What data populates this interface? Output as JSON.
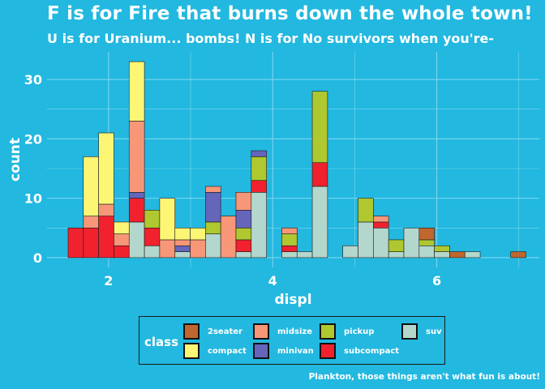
{
  "title": "F is for Fire that burns down the whole town!",
  "subtitle": "U is for Uranium... bombs! N is for No survivors when you're-",
  "caption": "Plankton, those things aren't what fun is about!",
  "colors": {
    "background": "#22b8e0",
    "grid": "#7fd6ee",
    "bar_outline": "#1a1a1a"
  },
  "legend": {
    "title": "class",
    "items": [
      {
        "name": "2seater",
        "color": "#c0672d"
      },
      {
        "name": "compact",
        "color": "#fdf574"
      },
      {
        "name": "midsize",
        "color": "#f79778"
      },
      {
        "name": "minivan",
        "color": "#6565ba"
      },
      {
        "name": "pickup",
        "color": "#afc82f"
      },
      {
        "name": "subcompact",
        "color": "#f2212e"
      },
      {
        "name": "suv",
        "color": "#b3d7cc"
      }
    ]
  },
  "chart_data": {
    "type": "bar",
    "stacked": true,
    "xlabel": "displ",
    "ylabel": "count",
    "xlim": [
      1.25,
      7.25
    ],
    "ylim": [
      -1.65,
      34.65
    ],
    "xticks": [
      "2",
      "4",
      "6"
    ],
    "xtick_values": [
      2,
      4,
      6
    ],
    "yticks": [
      "0",
      "10",
      "20",
      "30"
    ],
    "ytick_values": [
      0,
      10,
      20,
      30
    ],
    "grid": true,
    "legend_position": "bottom",
    "bin_width": 0.186,
    "bins_center": [
      1.6,
      1.786,
      1.972,
      2.158,
      2.344,
      2.53,
      2.716,
      2.902,
      3.088,
      3.274,
      3.46,
      3.646,
      3.832,
      4.018,
      4.204,
      4.39,
      4.576,
      4.762,
      4.948,
      5.134,
      5.32,
      5.506,
      5.692,
      5.878,
      6.064,
      6.25,
      6.436,
      6.622,
      6.808,
      6.994
    ],
    "series": [
      {
        "name": "2seater",
        "values": [
          0,
          0,
          0,
          0,
          0,
          0,
          0,
          0,
          0,
          0,
          0,
          0,
          0,
          0,
          0,
          0,
          0,
          0,
          0,
          0,
          0,
          0,
          0,
          2,
          0,
          1,
          0,
          0,
          0,
          1
        ]
      },
      {
        "name": "compact",
        "values": [
          0,
          10,
          12,
          2,
          10,
          0,
          7,
          2,
          2,
          0,
          0,
          0,
          0,
          0,
          0,
          0,
          0,
          0,
          0,
          0,
          0,
          0,
          0,
          0,
          0,
          0,
          0,
          0,
          0,
          0
        ]
      },
      {
        "name": "midsize",
        "values": [
          0,
          2,
          2,
          2,
          12,
          0,
          3,
          1,
          3,
          1,
          7,
          3,
          0,
          0,
          1,
          0,
          0,
          0,
          0,
          0,
          1,
          0,
          0,
          0,
          0,
          0,
          0,
          0,
          0,
          0
        ]
      },
      {
        "name": "minivan",
        "values": [
          0,
          0,
          0,
          0,
          1,
          0,
          0,
          1,
          0,
          5,
          0,
          3,
          1,
          0,
          0,
          0,
          0,
          0,
          0,
          0,
          0,
          0,
          0,
          0,
          0,
          0,
          0,
          0,
          0,
          0
        ]
      },
      {
        "name": "pickup",
        "values": [
          0,
          0,
          0,
          0,
          0,
          3,
          0,
          0,
          0,
          2,
          0,
          2,
          4,
          0,
          2,
          0,
          12,
          0,
          0,
          4,
          0,
          2,
          0,
          1,
          1,
          0,
          0,
          0,
          0,
          0
        ]
      },
      {
        "name": "subcompact",
        "values": [
          5,
          5,
          7,
          2,
          4,
          3,
          0,
          0,
          0,
          0,
          0,
          2,
          2,
          0,
          1,
          0,
          4,
          0,
          0,
          0,
          1,
          0,
          0,
          0,
          0,
          0,
          0,
          0,
          0,
          0
        ]
      },
      {
        "name": "suv",
        "values": [
          0,
          0,
          0,
          0,
          6,
          2,
          0,
          1,
          0,
          4,
          0,
          1,
          11,
          0,
          1,
          1,
          12,
          0,
          2,
          6,
          5,
          1,
          5,
          2,
          1,
          0,
          1,
          0,
          0,
          0
        ]
      }
    ]
  }
}
